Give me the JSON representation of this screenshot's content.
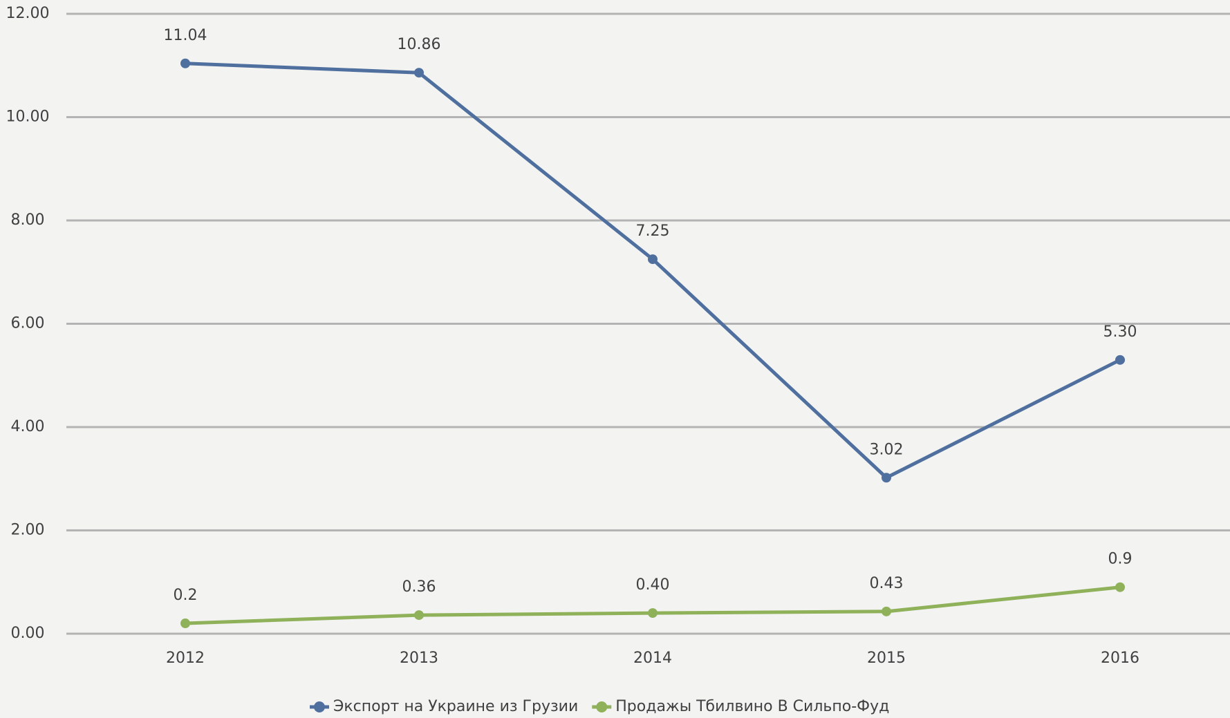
{
  "chart_data": {
    "type": "line",
    "categories": [
      "2012",
      "2013",
      "2014",
      "2015",
      "2016"
    ],
    "series": [
      {
        "name": "Экспорт на Украине из Грузии",
        "color": "#4f6f9f",
        "values": [
          11.04,
          10.86,
          7.25,
          3.02,
          5.3
        ],
        "value_labels": [
          "11.04",
          "10.86",
          "7.25",
          "3.02",
          "5.30"
        ]
      },
      {
        "name": "Продажы Тбилвино В Сильпо-Фуд",
        "color": "#8fb15a",
        "values": [
          0.2,
          0.36,
          0.4,
          0.43,
          0.9
        ],
        "value_labels": [
          "0.2",
          "0.36",
          "0.40",
          "0.43",
          "0.9"
        ]
      }
    ],
    "ylim": [
      0,
      12
    ],
    "yticks": [
      {
        "value": 0,
        "label": "0.00"
      },
      {
        "value": 2,
        "label": "2.00"
      },
      {
        "value": 4,
        "label": "4.00"
      },
      {
        "value": 6,
        "label": "6.00"
      },
      {
        "value": 8,
        "label": "8.00"
      },
      {
        "value": 10,
        "label": "10.00"
      },
      {
        "value": 12,
        "label": "12.00"
      }
    ],
    "grid": true,
    "legend": "bottom"
  }
}
